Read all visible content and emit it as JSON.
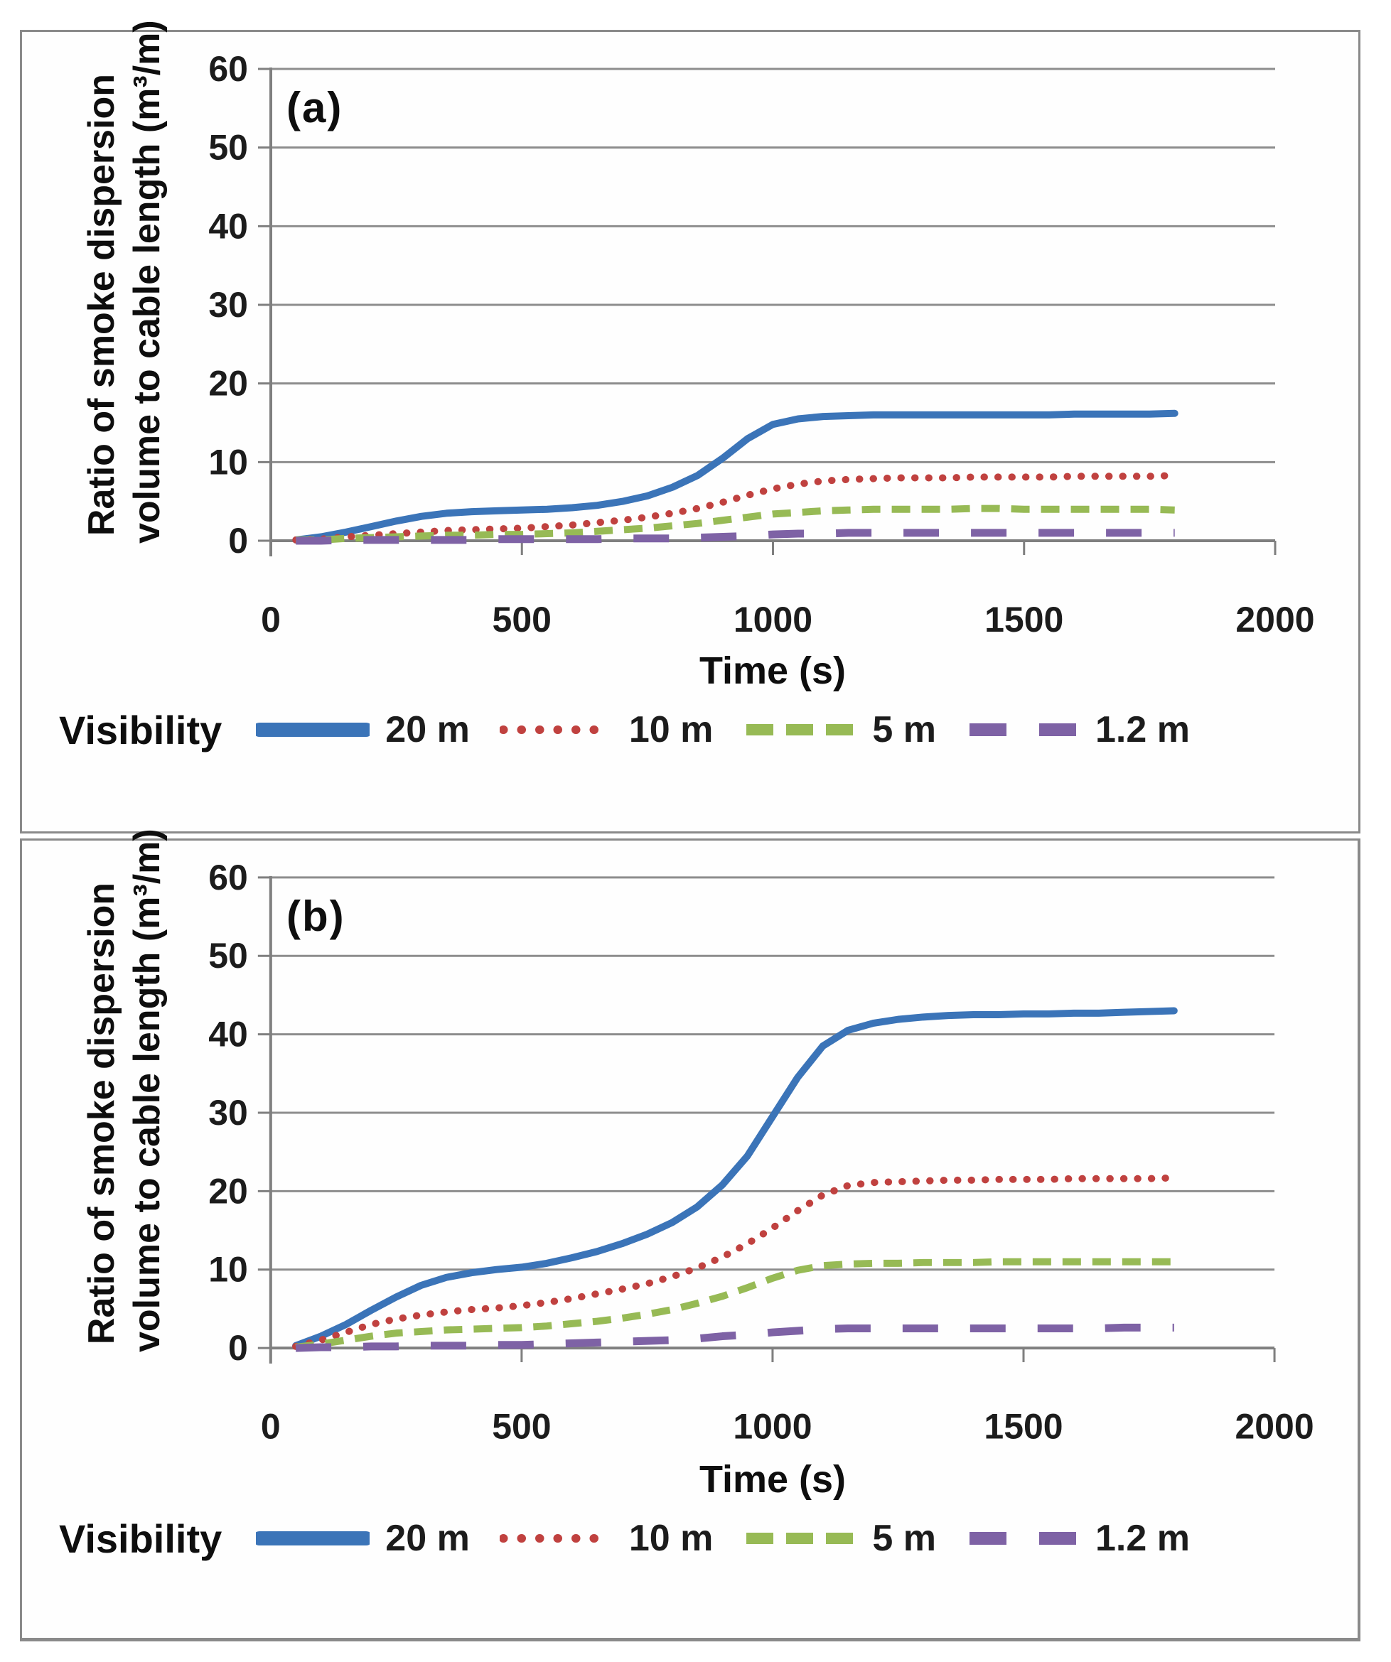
{
  "figure": {
    "background": "#ffffff",
    "border_color": "#8a8a8a"
  },
  "colors": {
    "gridline": "#8d8d8d",
    "axis": "#7f7f7f",
    "tick_label": "#1c1c1c",
    "title_text": "#0e0e0e"
  },
  "chart_data": [
    {
      "type": "line",
      "panel_label": "(a)",
      "xlabel": "Time (s)",
      "ylabel": "Ratio of smoke dispersion volume to cable length (m³/m)",
      "ylabel_line1": "Ratio of smoke dispersion",
      "ylabel_line2": "volume to cable length (m³/m)",
      "legend_title": "Visibility",
      "legend_position": "bottom",
      "grid": "horizontal-only",
      "xlim": [
        0,
        2000
      ],
      "ylim": [
        0,
        60
      ],
      "x_ticks": [
        0,
        500,
        1000,
        1500,
        2000
      ],
      "y_ticks": [
        0,
        10,
        20,
        30,
        40,
        50,
        60
      ],
      "x": [
        50,
        100,
        150,
        200,
        250,
        300,
        350,
        400,
        450,
        500,
        550,
        600,
        650,
        700,
        750,
        800,
        850,
        900,
        950,
        1000,
        1050,
        1100,
        1150,
        1200,
        1250,
        1300,
        1350,
        1400,
        1450,
        1500,
        1550,
        1600,
        1650,
        1700,
        1750,
        1800
      ],
      "series": [
        {
          "name": "20 m",
          "color": "#3b74b8",
          "style": "solid",
          "values": [
            0.1,
            0.5,
            1.1,
            1.8,
            2.5,
            3.1,
            3.5,
            3.7,
            3.8,
            3.9,
            4.0,
            4.2,
            4.5,
            5.0,
            5.7,
            6.8,
            8.3,
            10.5,
            13.0,
            14.8,
            15.5,
            15.8,
            15.9,
            16.0,
            16.0,
            16.0,
            16.0,
            16.0,
            16.0,
            16.0,
            16.0,
            16.1,
            16.1,
            16.1,
            16.1,
            16.2
          ]
        },
        {
          "name": "10 m",
          "color": "#c0413f",
          "style": "dotted",
          "values": [
            0.1,
            0.2,
            0.5,
            0.7,
            0.9,
            1.1,
            1.3,
            1.4,
            1.5,
            1.6,
            1.8,
            2.0,
            2.3,
            2.6,
            3.0,
            3.5,
            4.1,
            4.9,
            5.8,
            6.6,
            7.2,
            7.6,
            7.8,
            7.9,
            8.0,
            8.0,
            8.0,
            8.1,
            8.1,
            8.1,
            8.1,
            8.2,
            8.2,
            8.2,
            8.2,
            8.3
          ]
        },
        {
          "name": "5 m",
          "color": "#97ba55",
          "style": "dashed",
          "values": [
            0.1,
            0.1,
            0.3,
            0.4,
            0.5,
            0.6,
            0.7,
            0.7,
            0.8,
            0.8,
            0.9,
            1.0,
            1.2,
            1.4,
            1.6,
            1.9,
            2.2,
            2.6,
            3.0,
            3.4,
            3.6,
            3.8,
            3.9,
            4.0,
            4.0,
            4.0,
            4.0,
            4.1,
            4.1,
            4.0,
            4.0,
            4.0,
            4.0,
            4.0,
            4.0,
            3.9
          ]
        },
        {
          "name": "1.2 m",
          "color": "#7e62a5",
          "style": "long-dash",
          "values": [
            0.0,
            0.0,
            0.1,
            0.1,
            0.1,
            0.1,
            0.1,
            0.1,
            0.2,
            0.2,
            0.2,
            0.2,
            0.2,
            0.3,
            0.3,
            0.3,
            0.4,
            0.5,
            0.6,
            0.8,
            0.9,
            0.9,
            1.0,
            1.0,
            1.0,
            1.0,
            1.0,
            1.0,
            1.0,
            1.0,
            1.0,
            1.0,
            1.0,
            1.0,
            1.0,
            1.0
          ]
        }
      ]
    },
    {
      "type": "line",
      "panel_label": "(b)",
      "xlabel": "Time (s)",
      "ylabel": "Ratio of smoke dispersion volume to cable length (m³/m)",
      "ylabel_line1": "Ratio of smoke dispersion",
      "ylabel_line2": "volume to cable length (m³/m)",
      "legend_title": "Visibility",
      "legend_position": "bottom",
      "grid": "horizontal-only",
      "xlim": [
        0,
        2000
      ],
      "ylim": [
        0,
        60
      ],
      "x_ticks": [
        0,
        500,
        1000,
        1500,
        2000
      ],
      "y_ticks": [
        0,
        10,
        20,
        30,
        40,
        50,
        60
      ],
      "x": [
        50,
        100,
        150,
        200,
        250,
        300,
        350,
        400,
        450,
        500,
        550,
        600,
        650,
        700,
        750,
        800,
        850,
        900,
        950,
        1000,
        1050,
        1100,
        1150,
        1200,
        1250,
        1300,
        1350,
        1400,
        1450,
        1500,
        1550,
        1600,
        1650,
        1700,
        1750,
        1800
      ],
      "series": [
        {
          "name": "20 m",
          "color": "#3b74b8",
          "style": "solid",
          "values": [
            0.3,
            1.5,
            3.0,
            4.8,
            6.5,
            8.0,
            9.0,
            9.6,
            10.0,
            10.3,
            10.8,
            11.5,
            12.3,
            13.3,
            14.5,
            16.0,
            18.0,
            20.8,
            24.5,
            29.5,
            34.5,
            38.5,
            40.5,
            41.4,
            41.9,
            42.2,
            42.4,
            42.5,
            42.5,
            42.6,
            42.6,
            42.7,
            42.7,
            42.8,
            42.9,
            43.0
          ]
        },
        {
          "name": "10 m",
          "color": "#c0413f",
          "style": "dotted",
          "values": [
            0.2,
            1.0,
            2.0,
            3.0,
            3.7,
            4.2,
            4.6,
            4.9,
            5.1,
            5.4,
            5.8,
            6.3,
            6.9,
            7.5,
            8.2,
            9.1,
            10.2,
            11.6,
            13.3,
            15.3,
            17.5,
            19.5,
            20.7,
            21.1,
            21.2,
            21.3,
            21.4,
            21.4,
            21.5,
            21.5,
            21.5,
            21.6,
            21.6,
            21.6,
            21.6,
            21.7
          ]
        },
        {
          "name": "5 m",
          "color": "#97ba55",
          "style": "dashed",
          "values": [
            0.1,
            0.5,
            1.0,
            1.5,
            1.9,
            2.1,
            2.3,
            2.4,
            2.5,
            2.6,
            2.8,
            3.1,
            3.4,
            3.8,
            4.3,
            4.9,
            5.7,
            6.6,
            7.7,
            8.9,
            9.9,
            10.5,
            10.7,
            10.8,
            10.8,
            10.9,
            10.9,
            10.9,
            11.0,
            11.0,
            11.0,
            11.0,
            11.0,
            11.0,
            11.0,
            11.0
          ]
        },
        {
          "name": "1.2 m",
          "color": "#7e62a5",
          "style": "long-dash",
          "values": [
            0.0,
            0.1,
            0.1,
            0.2,
            0.2,
            0.3,
            0.3,
            0.3,
            0.4,
            0.4,
            0.5,
            0.6,
            0.7,
            0.8,
            0.9,
            1.0,
            1.2,
            1.5,
            1.7,
            2.0,
            2.2,
            2.4,
            2.5,
            2.5,
            2.5,
            2.5,
            2.5,
            2.5,
            2.5,
            2.5,
            2.5,
            2.5,
            2.5,
            2.6,
            2.6,
            2.6
          ]
        }
      ]
    }
  ]
}
